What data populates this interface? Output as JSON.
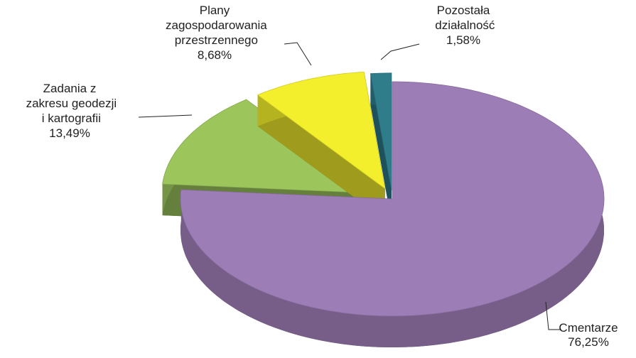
{
  "chart_data": {
    "type": "pie3d",
    "categories": [
      "Cmentarze",
      "Zadania z zakresu geodezji i kartografii",
      "Plany zagospodarowania przestrzennego",
      "Pozostała działalność"
    ],
    "values": [
      76.25,
      13.49,
      8.68,
      1.58
    ],
    "value_labels": [
      "76,25%",
      "13,49%",
      "8,68%",
      "1,58%"
    ],
    "colors": [
      "#9d7db6",
      "#9cc55c",
      "#f3ef2c",
      "#2f7c8b"
    ]
  }
}
